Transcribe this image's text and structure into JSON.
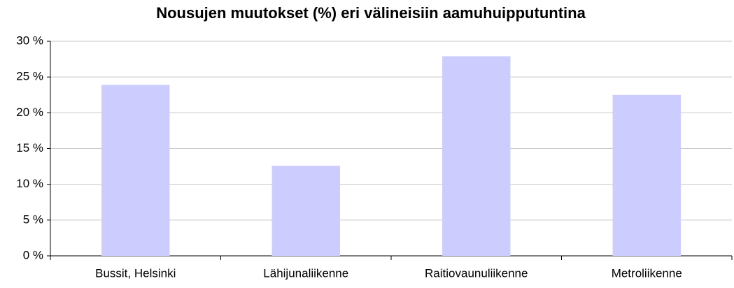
{
  "chart_data": {
    "type": "bar",
    "title": "Nousujen muutokset (%) eri välineisiin aamuhuipputuntina",
    "categories": [
      "Bussit, Helsinki",
      "Lähijunaliikenne",
      "Raitiovaunuliikenne",
      "Metroliikenne"
    ],
    "values": [
      23.9,
      12.6,
      27.9,
      22.5
    ],
    "color": "#ccccff",
    "ylim": [
      0,
      30
    ],
    "yticks": [
      {
        "value": 0,
        "label": "0 %"
      },
      {
        "value": 5,
        "label": "5 %"
      },
      {
        "value": 10,
        "label": "10 %"
      },
      {
        "value": 15,
        "label": "15 %"
      },
      {
        "value": 20,
        "label": "20 %"
      },
      {
        "value": 25,
        "label": "25 %"
      },
      {
        "value": 30,
        "label": "30 %"
      }
    ],
    "grid": true
  }
}
